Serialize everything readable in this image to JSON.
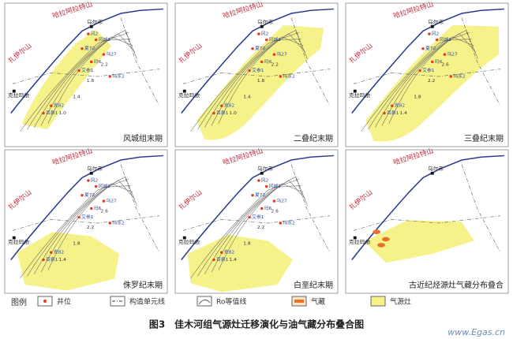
{
  "places": {
    "mountain_1": "哈拉阿拉特山",
    "mountain_2": "扎伊尔山",
    "town_1": "克拉玛依",
    "town_2": "乌尔禾"
  },
  "wells": [
    "风2",
    "风城1",
    "夏72",
    "乌27",
    "玛6",
    "艾参1",
    "克82",
    "百泉1",
    "玛东2"
  ],
  "panels": [
    {
      "caption": "风城组末期",
      "contour_labels": [
        "1.0",
        "1.4",
        "1.8",
        "2.2"
      ]
    },
    {
      "caption": "二叠纪末期",
      "contour_labels": [
        "1.0",
        "1.4",
        "1.8",
        "2.2"
      ]
    },
    {
      "caption": "三叠纪末期",
      "contour_labels": [
        "1.4",
        "1.8",
        "2.2",
        "2.6"
      ]
    },
    {
      "caption": "侏罗纪末期",
      "contour_labels": [
        "1.4",
        "1.8",
        "2.2",
        "2.6"
      ]
    },
    {
      "caption": "白垩纪末期",
      "contour_labels": [
        "1.4",
        "1.8",
        "2.2",
        "2.6"
      ]
    },
    {
      "caption": "古近纪烃源灶气藏分布叠合",
      "contour_labels": []
    }
  ],
  "legend": {
    "title": "图例",
    "items": [
      "井位",
      "构造单元线",
      "Ro等值线",
      "气藏",
      "气源灶"
    ]
  },
  "figure_caption": "图3　佳木河组气源灶迁移演化与油气藏分布叠合图",
  "watermark": "www.Egas.cn"
}
